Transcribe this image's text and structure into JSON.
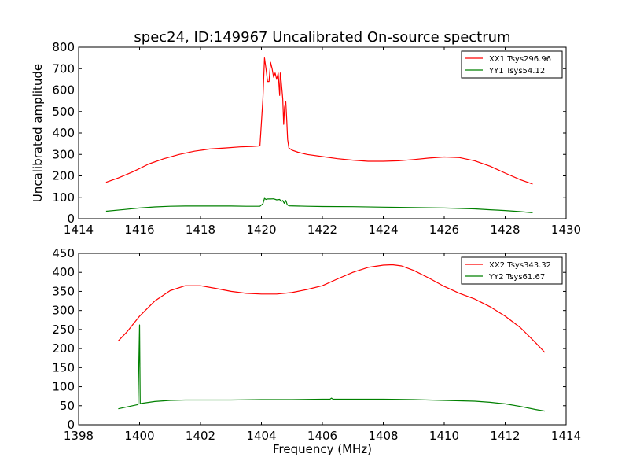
{
  "chart_data": [
    {
      "type": "line",
      "title": "spec24, ID:149967 Uncalibrated On-source spectrum",
      "xlabel": "",
      "ylabel": "Uncalibrated amplitude",
      "xlim": [
        1414,
        1430
      ],
      "ylim": [
        0,
        800
      ],
      "xticks": [
        1414,
        1416,
        1418,
        1420,
        1422,
        1424,
        1426,
        1428,
        1430
      ],
      "yticks": [
        0,
        100,
        200,
        300,
        400,
        500,
        600,
        700,
        800
      ],
      "legend_position": "top-right",
      "series": [
        {
          "name": "XX1 Tsys296.96",
          "color": "#ff0000",
          "x": [
            1414.9,
            1415.3,
            1415.8,
            1416.3,
            1416.8,
            1417.3,
            1417.8,
            1418.3,
            1418.8,
            1419.3,
            1419.7,
            1419.95,
            1420.05,
            1420.1,
            1420.15,
            1420.2,
            1420.25,
            1420.3,
            1420.35,
            1420.4,
            1420.45,
            1420.5,
            1420.55,
            1420.6,
            1420.62,
            1420.65,
            1420.7,
            1420.73,
            1420.76,
            1420.8,
            1420.83,
            1420.86,
            1420.9,
            1421.0,
            1421.2,
            1421.5,
            1422.0,
            1422.5,
            1423.0,
            1423.5,
            1424.0,
            1424.5,
            1425.0,
            1425.5,
            1426.0,
            1426.5,
            1427.0,
            1427.5,
            1428.0,
            1428.5,
            1428.9
          ],
          "y": [
            170,
            190,
            220,
            255,
            280,
            300,
            315,
            325,
            330,
            335,
            337,
            340,
            560,
            750,
            700,
            640,
            640,
            730,
            700,
            660,
            680,
            650,
            680,
            575,
            680,
            640,
            560,
            440,
            520,
            545,
            460,
            370,
            330,
            320,
            310,
            300,
            290,
            280,
            273,
            268,
            268,
            270,
            276,
            283,
            288,
            285,
            270,
            245,
            213,
            182,
            162
          ]
        },
        {
          "name": "YY1 Tsys54.12",
          "color": "#008000",
          "x": [
            1414.9,
            1415.5,
            1416.0,
            1416.5,
            1417.0,
            1417.5,
            1418.0,
            1418.5,
            1419.0,
            1419.5,
            1419.95,
            1420.05,
            1420.1,
            1420.15,
            1420.2,
            1420.3,
            1420.4,
            1420.5,
            1420.6,
            1420.65,
            1420.7,
            1420.75,
            1420.8,
            1420.85,
            1420.9,
            1421.5,
            1422.0,
            1423.0,
            1424.0,
            1425.0,
            1426.0,
            1427.0,
            1427.5,
            1428.0,
            1428.5,
            1428.9
          ],
          "y": [
            35,
            43,
            50,
            55,
            58,
            59,
            59,
            59,
            59,
            58,
            58,
            70,
            95,
            90,
            92,
            92,
            93,
            88,
            90,
            80,
            85,
            72,
            85,
            65,
            60,
            58,
            57,
            56,
            54,
            52,
            50,
            46,
            42,
            38,
            33,
            28
          ]
        }
      ]
    },
    {
      "type": "line",
      "title": "",
      "xlabel": "Frequency (MHz)",
      "ylabel": "",
      "xlim": [
        1398,
        1414
      ],
      "ylim": [
        0,
        450
      ],
      "xticks": [
        1398,
        1400,
        1402,
        1404,
        1406,
        1408,
        1410,
        1412,
        1414
      ],
      "yticks": [
        0,
        50,
        100,
        150,
        200,
        250,
        300,
        350,
        400,
        450
      ],
      "legend_position": "top-right",
      "series": [
        {
          "name": "XX2 Tsys343.32",
          "color": "#ff0000",
          "x": [
            1399.3,
            1399.6,
            1400.0,
            1400.5,
            1401.0,
            1401.5,
            1402.0,
            1402.5,
            1403.0,
            1403.5,
            1404.0,
            1404.5,
            1405.0,
            1405.5,
            1406.0,
            1406.5,
            1407.0,
            1407.5,
            1408.0,
            1408.3,
            1408.6,
            1409.0,
            1409.5,
            1410.0,
            1410.5,
            1411.0,
            1411.5,
            1412.0,
            1412.5,
            1413.0,
            1413.3
          ],
          "y": [
            220,
            245,
            285,
            325,
            352,
            365,
            365,
            358,
            350,
            345,
            343,
            343,
            347,
            355,
            365,
            383,
            400,
            413,
            419,
            420,
            417,
            405,
            385,
            363,
            345,
            330,
            310,
            285,
            255,
            215,
            190
          ]
        },
        {
          "name": "YY2 Tsys61.67",
          "color": "#008000",
          "x": [
            1399.3,
            1399.6,
            1399.95,
            1400.0,
            1400.02,
            1400.05,
            1400.5,
            1401.0,
            1401.5,
            1402.0,
            1403.0,
            1404.0,
            1405.0,
            1406.0,
            1406.25,
            1406.3,
            1406.35,
            1407.0,
            1408.0,
            1409.0,
            1410.0,
            1411.0,
            1411.5,
            1412.0,
            1412.5,
            1413.0,
            1413.3
          ],
          "y": [
            42,
            47,
            53,
            262,
            55,
            56,
            61,
            64,
            65,
            65,
            65,
            66,
            66,
            67,
            67,
            70,
            67,
            67,
            67,
            66,
            64,
            62,
            59,
            55,
            48,
            40,
            36
          ]
        }
      ]
    }
  ]
}
